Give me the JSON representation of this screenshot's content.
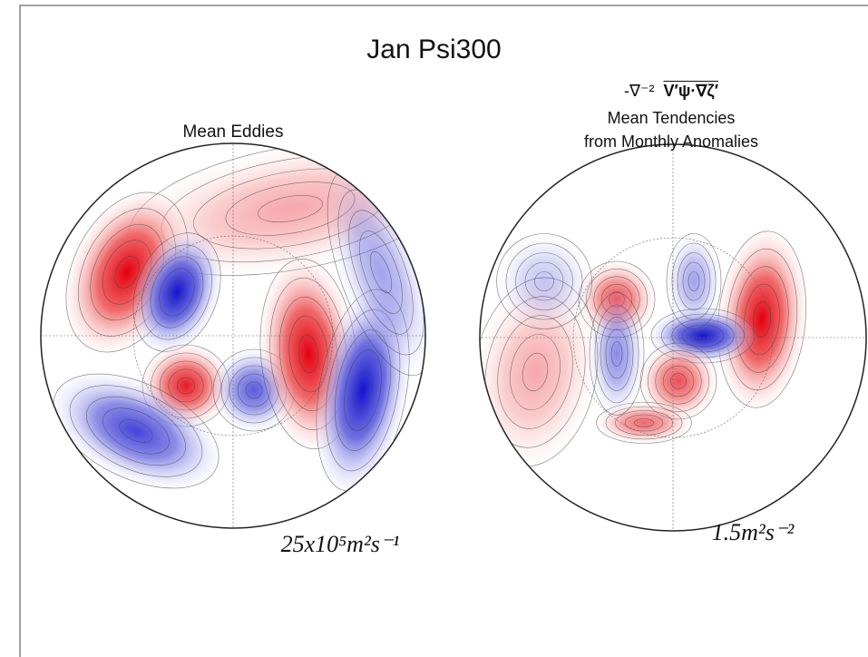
{
  "title": "Jan Psi300",
  "left_panel": {
    "title": "Mean Eddies",
    "scale_label": "25x10⁵m²s⁻¹"
  },
  "right_panel": {
    "formula_prefix": "-∇⁻²",
    "formula_term": "V′ψ·∇ζ′",
    "title_line1": "Mean Tendencies",
    "title_line2": "from Monthly Anomalies",
    "scale_label": "1.5m²s⁻²"
  }
}
